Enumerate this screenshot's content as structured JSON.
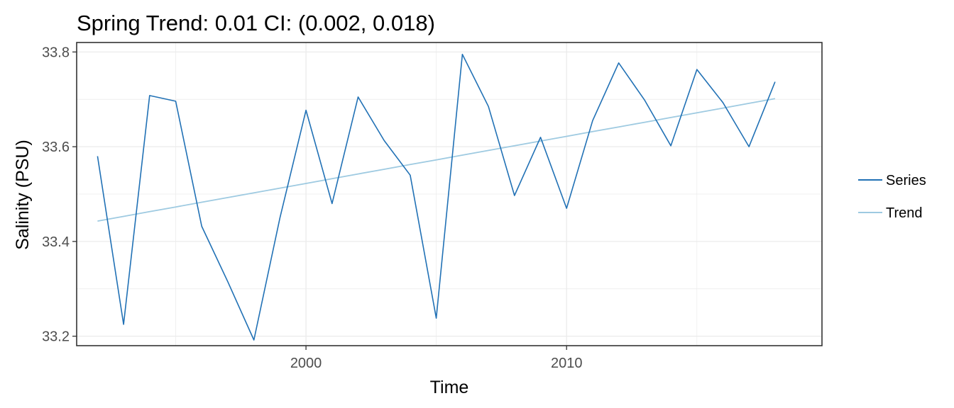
{
  "chart_data": {
    "type": "line",
    "title": "Spring Trend: 0.01 CI: (0.002, 0.018)",
    "xlabel": "Time",
    "ylabel": "Salinity (PSU)",
    "xlim": [
      1991.2,
      2019.8
    ],
    "ylim": [
      33.18,
      33.82
    ],
    "x_ticks": [
      2000,
      2010
    ],
    "x_tick_labels": [
      "2000",
      "2010"
    ],
    "y_ticks": [
      33.2,
      33.4,
      33.6,
      33.8
    ],
    "y_tick_labels": [
      "33.2",
      "33.4",
      "33.6",
      "33.8"
    ],
    "grid": true,
    "legend": "right",
    "colors": {
      "Series": "#2171b5",
      "Trend": "#9ecae1"
    },
    "x": [
      1992,
      1993,
      1994,
      1995,
      1996,
      1997,
      1998,
      1999,
      2000,
      2001,
      2002,
      2003,
      2004,
      2005,
      2006,
      2007,
      2008,
      2009,
      2010,
      2011,
      2012,
      2013,
      2014,
      2015,
      2016,
      2017,
      2018
    ],
    "series": [
      {
        "name": "Series",
        "values": [
          33.58,
          33.225,
          33.708,
          33.696,
          33.432,
          33.315,
          33.192,
          33.45,
          33.677,
          33.48,
          33.705,
          33.613,
          33.54,
          33.238,
          33.795,
          33.685,
          33.497,
          33.62,
          33.47,
          33.655,
          33.777,
          33.698,
          33.602,
          33.763,
          33.693,
          33.6,
          33.737
        ]
      },
      {
        "name": "Trend",
        "values": [
          33.443,
          33.4529,
          33.4629,
          33.4728,
          33.4828,
          33.4927,
          33.5026,
          33.5126,
          33.5225,
          33.5325,
          33.5424,
          33.5523,
          33.5623,
          33.5722,
          33.5822,
          33.5921,
          33.602,
          33.612,
          33.6219,
          33.6319,
          33.6418,
          33.6517,
          33.6617,
          33.6716,
          33.6816,
          33.6915,
          33.7015
        ]
      }
    ]
  }
}
